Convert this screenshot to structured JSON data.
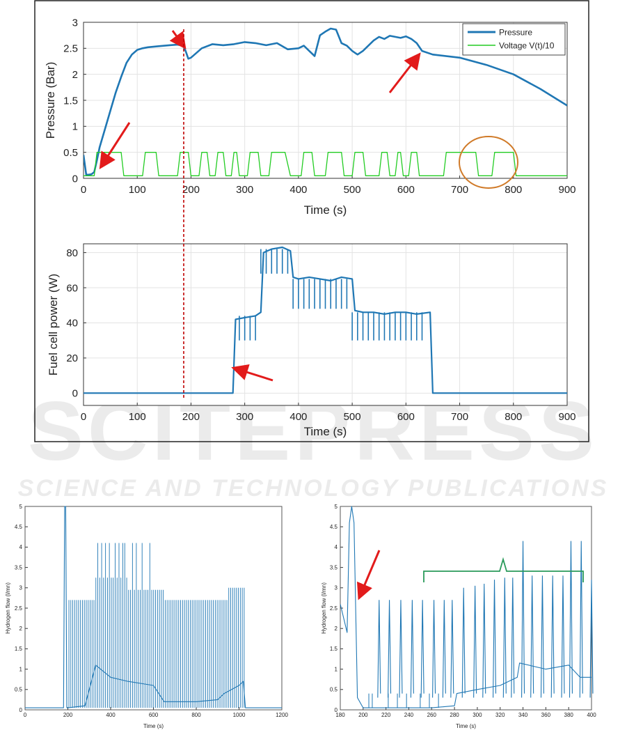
{
  "watermark": {
    "line1": "SCITEPRESS",
    "line2": "SCIENCE AND TECHNOLOGY PUBLICATIONS"
  },
  "chart_data": [
    {
      "type": "line",
      "ylabel": "Pressure (Bar)",
      "xlabel": "Time (s)",
      "xlim": [
        0,
        900
      ],
      "ylim": [
        0,
        3
      ],
      "xticks": [
        "0",
        "100",
        "200",
        "300",
        "400",
        "500",
        "600",
        "700",
        "800",
        "900"
      ],
      "yticks": [
        "0",
        "0.5",
        "1",
        "1.5",
        "2",
        "2.5",
        "3"
      ],
      "grid": true,
      "legend_position": "top-right",
      "series": [
        {
          "name": "Pressure",
          "color": "#1f77b4",
          "x": [
            0,
            5,
            10,
            15,
            20,
            25,
            30,
            40,
            50,
            60,
            70,
            80,
            90,
            100,
            110,
            120,
            140,
            160,
            175,
            185,
            190,
            195,
            200,
            220,
            240,
            260,
            280,
            300,
            320,
            340,
            360,
            380,
            400,
            410,
            420,
            430,
            440,
            450,
            460,
            470,
            480,
            490,
            500,
            510,
            520,
            530,
            540,
            550,
            560,
            570,
            580,
            590,
            600,
            610,
            620,
            630,
            650,
            700,
            750,
            800,
            850,
            900
          ],
          "y": [
            0.45,
            0.07,
            0.07,
            0.08,
            0.12,
            0.35,
            0.6,
            0.95,
            1.3,
            1.65,
            1.95,
            2.22,
            2.38,
            2.47,
            2.5,
            2.52,
            2.54,
            2.56,
            2.57,
            2.55,
            2.45,
            2.3,
            2.32,
            2.5,
            2.58,
            2.56,
            2.58,
            2.62,
            2.6,
            2.56,
            2.6,
            2.48,
            2.5,
            2.55,
            2.45,
            2.35,
            2.75,
            2.82,
            2.88,
            2.86,
            2.6,
            2.55,
            2.45,
            2.38,
            2.45,
            2.55,
            2.65,
            2.72,
            2.68,
            2.74,
            2.72,
            2.7,
            2.73,
            2.68,
            2.6,
            2.45,
            2.38,
            2.32,
            2.18,
            2.0,
            1.72,
            1.4
          ]
        },
        {
          "name": "Voltage V(t)/10",
          "color": "#22cc22",
          "x": [
            0,
            20,
            25,
            70,
            75,
            110,
            115,
            135,
            140,
            175,
            180,
            195,
            200,
            215,
            220,
            230,
            235,
            245,
            250,
            260,
            265,
            275,
            280,
            285,
            290,
            305,
            310,
            325,
            330,
            345,
            350,
            375,
            385,
            405,
            410,
            425,
            430,
            450,
            455,
            480,
            485,
            500,
            505,
            520,
            525,
            550,
            555,
            565,
            570,
            580,
            585,
            590,
            595,
            605,
            610,
            620,
            625,
            670,
            675,
            730,
            735,
            760,
            765,
            800,
            805,
            900
          ],
          "y": [
            0.05,
            0.05,
            0.5,
            0.5,
            0.05,
            0.05,
            0.5,
            0.5,
            0.05,
            0.05,
            0.5,
            0.5,
            0.05,
            0.05,
            0.5,
            0.5,
            0.05,
            0.05,
            0.5,
            0.5,
            0.05,
            0.05,
            0.5,
            0.5,
            0.05,
            0.05,
            0.5,
            0.5,
            0.05,
            0.05,
            0.5,
            0.5,
            0.05,
            0.05,
            0.5,
            0.5,
            0.05,
            0.05,
            0.5,
            0.5,
            0.05,
            0.05,
            0.5,
            0.5,
            0.05,
            0.05,
            0.5,
            0.5,
            0.05,
            0.05,
            0.5,
            0.5,
            0.05,
            0.05,
            0.5,
            0.5,
            0.05,
            0.05,
            0.5,
            0.5,
            0.05,
            0.05,
            0.5,
            0.5,
            0.05,
            0.05
          ]
        }
      ]
    },
    {
      "type": "line",
      "ylabel": "Fuel cell power (W)",
      "xlabel": "Time (s)",
      "xlim": [
        0,
        900
      ],
      "ylim": [
        -7,
        85
      ],
      "xticks": [
        "0",
        "100",
        "200",
        "300",
        "400",
        "500",
        "600",
        "700",
        "800",
        "900"
      ],
      "yticks": [
        "0",
        "20",
        "40",
        "60",
        "80"
      ],
      "grid": true,
      "series": [
        {
          "name": "",
          "color": "#1f77b4",
          "x": [
            0,
            278,
            283,
            300,
            320,
            330,
            335,
            350,
            370,
            385,
            390,
            400,
            420,
            440,
            460,
            480,
            500,
            505,
            520,
            540,
            560,
            580,
            600,
            620,
            645,
            650,
            900
          ],
          "y": [
            0,
            0,
            42,
            43,
            44,
            46,
            80,
            82,
            83,
            81,
            66,
            65,
            66,
            65,
            64,
            66,
            65,
            47,
            46,
            46,
            45,
            46,
            46,
            45,
            46,
            0,
            0
          ]
        }
      ]
    },
    {
      "type": "line",
      "ylabel": "Hydrogen flow (l/mn)",
      "xlabel": "Time (s)",
      "xlim": [
        0,
        1200
      ],
      "ylim": [
        0,
        5
      ],
      "xticks": [
        "0",
        "200",
        "400",
        "600",
        "800",
        "1000",
        "1200"
      ],
      "yticks": [
        "0",
        "0.5",
        "1",
        "1.5",
        "2",
        "2.5",
        "3",
        "3.5",
        "4",
        "4.5",
        "5"
      ],
      "series": [
        {
          "name": "",
          "color": "#1f77b4",
          "x": [
            0,
            180,
            185,
            190,
            195,
            200,
            280,
            300,
            330,
            400,
            480,
            600,
            650,
            700,
            800,
            900,
            930,
            1000,
            1020,
            1030,
            1200
          ],
          "y": [
            0.05,
            0.05,
            5.0,
            5.0,
            0.05,
            0.05,
            0.1,
            0.5,
            1.1,
            0.8,
            0.7,
            0.6,
            0.2,
            0.2,
            0.2,
            0.25,
            0.4,
            0.6,
            0.7,
            0.05,
            0.05
          ]
        }
      ]
    },
    {
      "type": "line",
      "ylabel": "Hydrogen flow (l/mn)",
      "xlabel": "Time (s)",
      "xlim": [
        180,
        400
      ],
      "ylim": [
        0,
        5
      ],
      "xticks": [
        "180",
        "200",
        "220",
        "240",
        "260",
        "280",
        "300",
        "320",
        "340",
        "360",
        "380",
        "400"
      ],
      "yticks": [
        "0",
        "0.5",
        "1",
        "1.5",
        "2",
        "2.5",
        "3",
        "3.5",
        "4",
        "4.5",
        "5"
      ],
      "series": [
        {
          "name": "",
          "color": "#1f77b4",
          "x": [
            180,
            186,
            188,
            190,
            192,
            195,
            200,
            210,
            220,
            240,
            260,
            280,
            282,
            300,
            320,
            335,
            337,
            360,
            380,
            390,
            400
          ],
          "y": [
            2.6,
            1.9,
            4.6,
            5.0,
            4.6,
            0.3,
            0.05,
            0.05,
            0.05,
            0.05,
            0.05,
            0.1,
            0.4,
            0.5,
            0.6,
            0.8,
            1.15,
            1.0,
            1.1,
            0.8,
            0.8
          ]
        }
      ]
    }
  ]
}
